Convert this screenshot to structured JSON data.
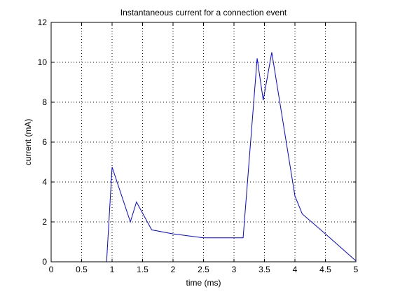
{
  "chart_data": {
    "type": "line",
    "title": "Instantaneous current for a connection event",
    "xlabel": "time (ms)",
    "ylabel": "current (mA)",
    "xlim": [
      0,
      5
    ],
    "ylim": [
      0,
      12
    ],
    "xticks": [
      0,
      0.5,
      1,
      1.5,
      2,
      2.5,
      3,
      3.5,
      4,
      4.5,
      5
    ],
    "xtick_labels": [
      "0",
      "0.5",
      "1",
      "1.5",
      "2",
      "2.5",
      "3",
      "3.5",
      "4",
      "4.5",
      "5"
    ],
    "yticks": [
      0,
      2,
      4,
      6,
      8,
      10,
      12
    ],
    "ytick_labels": [
      "0",
      "2",
      "4",
      "6",
      "8",
      "10",
      "12"
    ],
    "grid": true,
    "grid_style": "dotted",
    "series": [
      {
        "color": "#0000ff",
        "x": [
          0.91,
          1.0,
          1.3,
          1.4,
          1.65,
          2.0,
          2.5,
          3.0,
          3.15,
          3.38,
          3.48,
          3.62,
          4.0,
          4.12,
          4.5,
          5.0
        ],
        "y": [
          0.0,
          4.75,
          2.0,
          3.0,
          1.6,
          1.4,
          1.2,
          1.2,
          1.2,
          10.2,
          8.1,
          10.5,
          3.3,
          2.4,
          1.4,
          0.05
        ]
      }
    ],
    "colors": {
      "axes": "#000000",
      "grid": "#000000",
      "background": "#ffffff"
    }
  }
}
